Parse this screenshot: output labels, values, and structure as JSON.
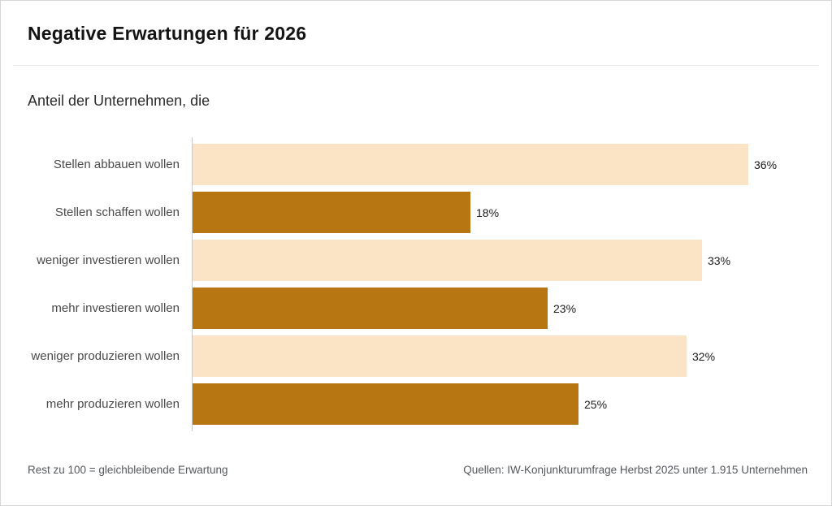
{
  "title": "Negative Erwartungen für 2026",
  "subtitle": "Anteil der Unternehmen, die",
  "footer": {
    "note": "Rest zu 100 = gleichbleibende Erwartung",
    "source": "Quellen: IW-Konjunkturumfrage Herbst 2025 unter 1.915 Unternehmen"
  },
  "colors": {
    "light": "#FBE4C6",
    "dark": "#B77611",
    "axis": "#c9c9c9"
  },
  "chart_data": {
    "type": "bar",
    "orientation": "horizontal",
    "title": "Anteil der Unternehmen, die",
    "categories": [
      "Stellen abbauen wollen",
      "Stellen schaffen wollen",
      "weniger investieren wollen",
      "mehr investieren wollen",
      "weniger produzieren wollen",
      "mehr produzieren wollen"
    ],
    "values": [
      36,
      18,
      33,
      23,
      32,
      25
    ],
    "value_labels": [
      "36%",
      "18%",
      "33%",
      "23%",
      "32%",
      "25%"
    ],
    "bar_colors": [
      "light",
      "dark",
      "light",
      "dark",
      "light",
      "dark"
    ],
    "xlim": [
      0,
      40
    ],
    "grid": false,
    "legend": "none",
    "rows": [
      {
        "label": "Stellen abbauen wollen",
        "value": 36,
        "display": "36%",
        "color": "light"
      },
      {
        "label": "Stellen schaffen wollen",
        "value": 18,
        "display": "18%",
        "color": "dark"
      },
      {
        "label": "weniger investieren wollen",
        "value": 33,
        "display": "33%",
        "color": "light"
      },
      {
        "label": "mehr investieren wollen",
        "value": 23,
        "display": "23%",
        "color": "dark"
      },
      {
        "label": "weniger produzieren wollen",
        "value": 32,
        "display": "32%",
        "color": "light"
      },
      {
        "label": "mehr produzieren wollen",
        "value": 25,
        "display": "25%",
        "color": "dark"
      }
    ]
  }
}
